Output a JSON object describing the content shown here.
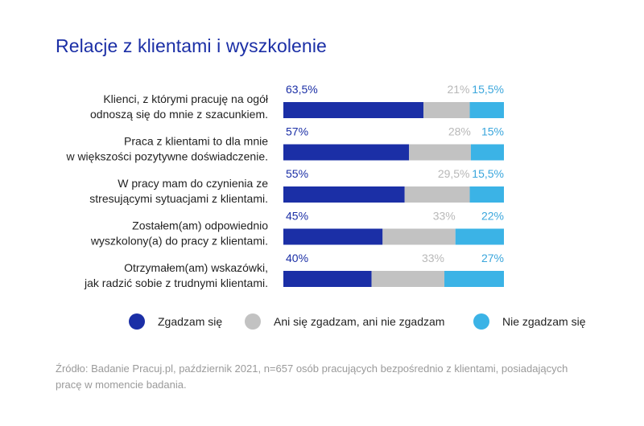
{
  "title": "Relacje z klientami i wyszkolenie",
  "colors": {
    "agree": "#1b2fa6",
    "neutral": "#c2c2c2",
    "disagree": "#3bb3e6",
    "label_agree": "#1b2fa6",
    "label_neutral": "#b8b8b8",
    "label_disagree": "#3aa6dc"
  },
  "legend": [
    {
      "key": "agree",
      "label": "Zgadzam się"
    },
    {
      "key": "neutral",
      "label": "Ani się zgadzam, ani nie zgadzam"
    },
    {
      "key": "disagree",
      "label": "Nie zgadzam się"
    }
  ],
  "source": "Źródło: Badanie Pracuj.pl, październik 2021, n=657 osób pracujących bezpośrednio z klientami, posiadających pracę w momencie badania.",
  "chart_data": {
    "type": "bar",
    "orientation": "horizontal",
    "stacked": true,
    "unit": "%",
    "categories": [
      [
        "Klienci, z którymi pracuję na ogół",
        "odnoszą się do mnie z szacunkiem."
      ],
      [
        "Praca z klientami to dla mnie",
        "w większości pozytywne doświadczenie."
      ],
      [
        "W pracy mam do czynienia ze",
        "stresującymi sytuacjami z klientami."
      ],
      [
        "Zostałem(am) odpowiednio",
        "wyszkolony(a) do pracy z klientami."
      ],
      [
        "Otrzymałem(am) wskazówki,",
        "jak radzić sobie z trudnymi klientami."
      ]
    ],
    "series": [
      {
        "name": "Zgadzam się",
        "key": "agree",
        "values": [
          63.5,
          57,
          55,
          45,
          40
        ],
        "labels": [
          "63,5%",
          "57%",
          "55%",
          "45%",
          "40%"
        ]
      },
      {
        "name": "Ani się zgadzam, ani nie zgadzam",
        "key": "neutral",
        "values": [
          21,
          28,
          29.5,
          33,
          33
        ],
        "labels": [
          "21%",
          "28%",
          "29,5%",
          "33%",
          "33%"
        ]
      },
      {
        "name": "Nie zgadzam się",
        "key": "disagree",
        "values": [
          15.5,
          15,
          15.5,
          22,
          27
        ],
        "labels": [
          "15,5%",
          "15%",
          "15,5%",
          "22%",
          "27%"
        ]
      }
    ],
    "xlim": [
      0,
      100
    ],
    "legend_position": "bottom",
    "grid": false
  }
}
